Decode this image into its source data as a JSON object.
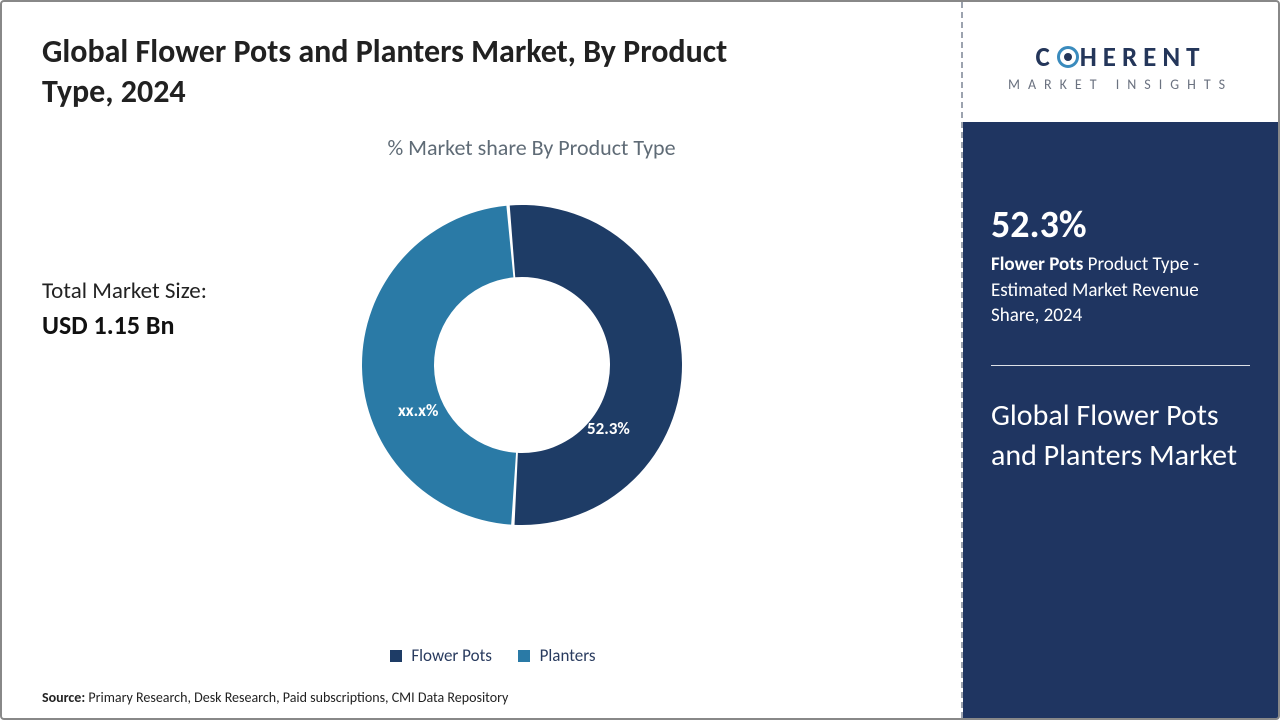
{
  "title": "Global Flower Pots and Planters Market, By Product Type, 2024",
  "chart": {
    "type": "donut",
    "subtitle": "% Market share By Product Type",
    "slices": [
      {
        "name": "Flower Pots",
        "value": 52.3,
        "label": "52.3%",
        "color": "#1e3c66"
      },
      {
        "name": "Planters",
        "value": 47.7,
        "label": "xx.x%",
        "color": "#2a7aa6"
      }
    ],
    "start_angle_deg": -95,
    "direction": "clockwise",
    "outer_radius": 160,
    "inner_radius": 88,
    "gap_deg": 1.2,
    "label_color": "#ffffff",
    "label_fontsize": 17,
    "background_color": "#ffffff"
  },
  "market_size": {
    "label": "Total Market Size:",
    "value": "USD 1.15 Bn"
  },
  "legend": {
    "items": [
      {
        "label": "Flower Pots",
        "color": "#1e3c66"
      },
      {
        "label": "Planters",
        "color": "#2a7aa6"
      }
    ]
  },
  "side": {
    "stat_value": "52.3%",
    "stat_bold": "Flower Pots",
    "stat_rest": " Product Type - Estimated Market Revenue Share, 2024",
    "heading": "Global Flower Pots and Planters Market",
    "panel_bg": "#1f3561",
    "text_color": "#ffffff"
  },
  "logo": {
    "line1_pre": "C",
    "line1_post": "HERENT",
    "line2": "MARKET INSIGHTS",
    "ring_color": "#3a8bbd",
    "text_color": "#24365a"
  },
  "source": {
    "label": "Source:",
    "text": " Primary Research, Desk Research, Paid subscriptions, CMI Data Repository"
  }
}
